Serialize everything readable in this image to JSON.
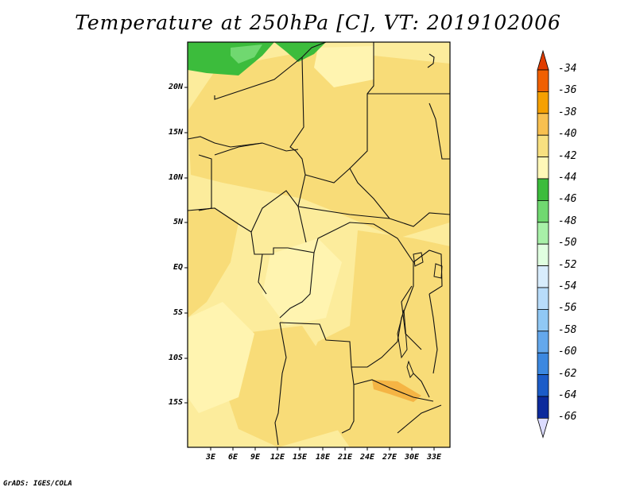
{
  "title": "Temperature at 250hPa [C], VT: 2019102006",
  "footer": "GrADS: IGES/COLA",
  "lat_labels": [
    "20N",
    "15N",
    "10N",
    "5N",
    "EQ",
    "5S",
    "10S",
    "15S"
  ],
  "lon_labels": [
    "3E",
    "6E",
    "9E",
    "12E",
    "15E",
    "18E",
    "21E",
    "24E",
    "27E",
    "30E",
    "33E"
  ],
  "colorbar": {
    "labels": [
      "-34",
      "-36",
      "-38",
      "-40",
      "-42",
      "-44",
      "-46",
      "-48",
      "-50",
      "-52",
      "-54",
      "-56",
      "-58",
      "-60",
      "-62",
      "-64",
      "-66"
    ],
    "colors": [
      "#e03c00",
      "#f06000",
      "#f5a000",
      "#f8c050",
      "#f8e080",
      "#fff8b8",
      "#3cbc3c",
      "#70d870",
      "#a8f0a8",
      "#e0ffe0",
      "#d8ecfc",
      "#b8dcfa",
      "#90c8f4",
      "#64a8ec",
      "#3c88e0",
      "#1c5cc8",
      "#0c2a9c",
      "#0a1470",
      "#dcdcff"
    ]
  },
  "field_colors": {
    "t40": "#f8dc78",
    "t42": "#fff4b0",
    "t38": "#f5b444",
    "t44": "#3cbc3c",
    "t46": "#70d870"
  }
}
